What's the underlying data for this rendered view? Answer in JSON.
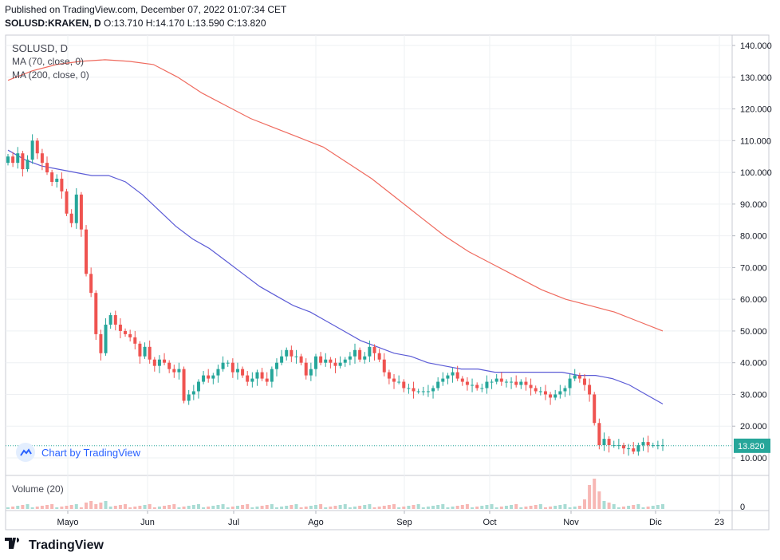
{
  "header": {
    "published": "Published on TradingView.com, December 07, 2022 01:07:34 CET",
    "symbol": "SOLUSD:KRAKEN, D",
    "ohlc": "O:13.710 H:14.170 L:13.590 C:13.820"
  },
  "legend": {
    "symbol": "SOLUSD, D",
    "ma70": "MA (70, close, 0)",
    "ma200": "MA (200, close, 0)"
  },
  "volume_label": "Volume (20)",
  "watermark": "Chart by TradingView",
  "footer_brand": "TradingView",
  "colors": {
    "up": "#26a69a",
    "down": "#ef5350",
    "ma70": "#5b5bd6",
    "ma200": "#ef6a5e",
    "last": "#26a69a"
  },
  "chart_data": {
    "type": "candlestick",
    "price_axis": {
      "ticks": [
        "140.000",
        "130.000",
        "120.000",
        "110.000",
        "100.000",
        "90.000",
        "80.000",
        "70.000",
        "60.000",
        "50.000",
        "40.000",
        "30.000",
        "20.000",
        "10.000"
      ],
      "range": [
        0,
        140
      ]
    },
    "volume_axis": {
      "ticks": [
        "0"
      ]
    },
    "x_ticks": [
      "Mayo",
      "Jun",
      "Jul",
      "Ago",
      "Sep",
      "Oct",
      "Nov",
      "Dic",
      "23"
    ],
    "last_price": "13.820",
    "closes": [
      105,
      103,
      106,
      101,
      104,
      110,
      106,
      103,
      100,
      97,
      98,
      94,
      87,
      84,
      93,
      82,
      68,
      62,
      49,
      43,
      52,
      55,
      52,
      50,
      49,
      48,
      46,
      42,
      45,
      41,
      39,
      41,
      40,
      38,
      37,
      38,
      28,
      30,
      31,
      34,
      36,
      35,
      36,
      38,
      40,
      40,
      37,
      38,
      36,
      34,
      35,
      37,
      35,
      34,
      38,
      40,
      42,
      44,
      42,
      42,
      40,
      36,
      38,
      42,
      40,
      41,
      40,
      39,
      40,
      41,
      42,
      44,
      41,
      42,
      45,
      43,
      41,
      37,
      35,
      34,
      34,
      32,
      32,
      31,
      31,
      31,
      31,
      32,
      34,
      35,
      36,
      37,
      35,
      34,
      33,
      33,
      32,
      32,
      34,
      34,
      35,
      34,
      34,
      34,
      33,
      34,
      33,
      32,
      31,
      31,
      30,
      29,
      30,
      31,
      32,
      35,
      36,
      35,
      33,
      30,
      21,
      14,
      16,
      14,
      14,
      14,
      13,
      13,
      12,
      14,
      15,
      14,
      14,
      14,
      14
    ],
    "ma70": [
      107,
      104,
      102,
      101,
      100,
      99,
      99,
      97,
      93,
      88,
      83,
      79,
      76,
      72,
      68,
      64,
      61,
      58,
      56,
      53,
      50,
      47,
      45,
      43,
      42,
      40,
      39,
      38,
      38,
      37,
      37,
      37,
      37,
      37,
      36,
      36,
      35,
      33,
      30,
      27
    ],
    "ma200": [
      129,
      132,
      134,
      135,
      135.5,
      135,
      134,
      130,
      125,
      121,
      117,
      114,
      111,
      108,
      103,
      98,
      92,
      86,
      80,
      75,
      71,
      67,
      63,
      60,
      58,
      56,
      53,
      50
    ],
    "volume_note": "volume bars near zero with spike in early November"
  }
}
